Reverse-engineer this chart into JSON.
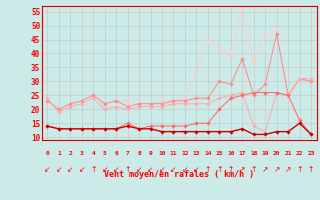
{
  "x": [
    0,
    1,
    2,
    3,
    4,
    5,
    6,
    7,
    8,
    9,
    10,
    11,
    12,
    13,
    14,
    15,
    16,
    17,
    18,
    19,
    20,
    21,
    22,
    23
  ],
  "series1": [
    14,
    13,
    13,
    13,
    13,
    13,
    13,
    14,
    13,
    13,
    12,
    12,
    12,
    12,
    12,
    12,
    12,
    13,
    11,
    11,
    12,
    12,
    15,
    11
  ],
  "series2": [
    14,
    13,
    13,
    13,
    13,
    13,
    13,
    15,
    13,
    14,
    14,
    14,
    14,
    15,
    15,
    20,
    24,
    25,
    26,
    26,
    26,
    25,
    16,
    11
  ],
  "series3": [
    24,
    19,
    21,
    22,
    24,
    20,
    21,
    20,
    21,
    21,
    21,
    22,
    22,
    22,
    22,
    24,
    25,
    26,
    14,
    12,
    26,
    25,
    31,
    31
  ],
  "series4": [
    23,
    20,
    22,
    23,
    25,
    22,
    23,
    21,
    22,
    22,
    22,
    23,
    23,
    24,
    24,
    30,
    29,
    38,
    25,
    29,
    47,
    25,
    31,
    30
  ],
  "series5": [
    23,
    20,
    22,
    23,
    25,
    22,
    23,
    23,
    22,
    22,
    23,
    23,
    24,
    33,
    45,
    42,
    39,
    56,
    37,
    47,
    48,
    24,
    31,
    30
  ],
  "bg_color": "#cceae8",
  "grid_color": "#bbbbbb",
  "line_color1": "#cc0000",
  "line_color2": "#ff6666",
  "line_color3": "#ffaaaa",
  "line_color4": "#ff8888",
  "line_color5": "#ffcccc",
  "xlabel": "Vent moyen/en rafales ( km/h )",
  "yticks": [
    10,
    15,
    20,
    25,
    30,
    35,
    40,
    45,
    50,
    55
  ],
  "ylim": [
    9,
    57
  ],
  "xlim": [
    -0.5,
    23.5
  ],
  "arrow_chars": [
    "↙",
    "↙",
    "↙",
    "↙",
    "↑",
    "↙",
    "↙",
    "↑",
    "↙",
    "↙",
    "↙",
    "↙",
    "↙",
    "↙",
    "↑",
    "↑",
    "↑",
    "↗",
    "↑",
    "↗",
    "↗",
    "↗",
    "↑",
    "↑"
  ]
}
